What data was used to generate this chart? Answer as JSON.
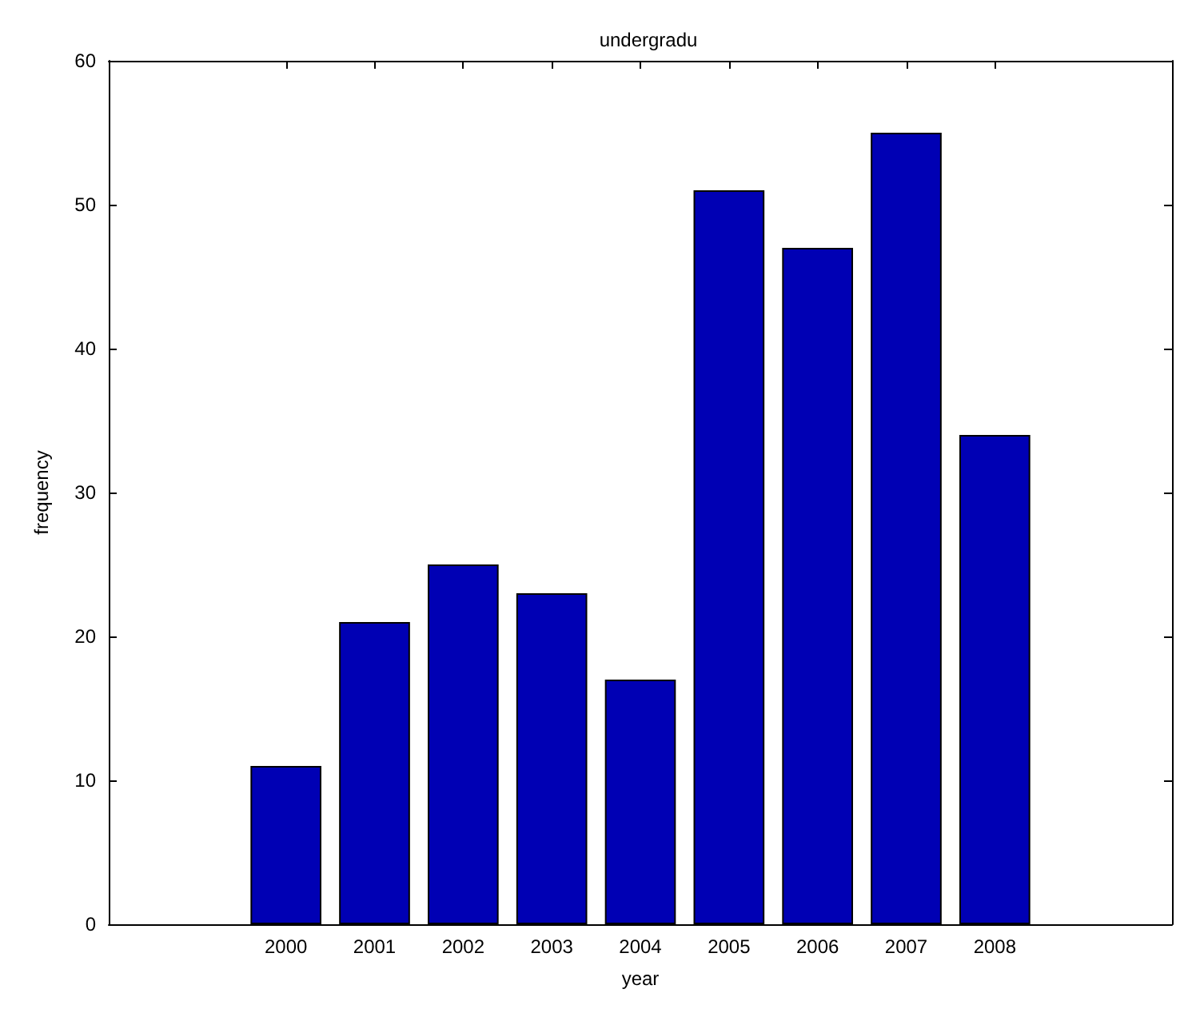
{
  "chart_data": {
    "type": "bar",
    "title": "undergradu",
    "xlabel": "year",
    "ylabel": "frequency",
    "x": [
      2000,
      2001,
      2002,
      2003,
      2004,
      2005,
      2006,
      2007,
      2008
    ],
    "values": [
      11,
      21,
      25,
      23,
      17,
      51,
      47,
      55,
      34
    ],
    "color": "#0000b4",
    "xlim": [
      1998,
      2010
    ],
    "xticks": [
      2000,
      2001,
      2002,
      2003,
      2004,
      2005,
      2006,
      2007,
      2008
    ],
    "ylim": [
      0,
      60
    ],
    "yticks": [
      0,
      10,
      20,
      30,
      40,
      50,
      60
    ]
  }
}
